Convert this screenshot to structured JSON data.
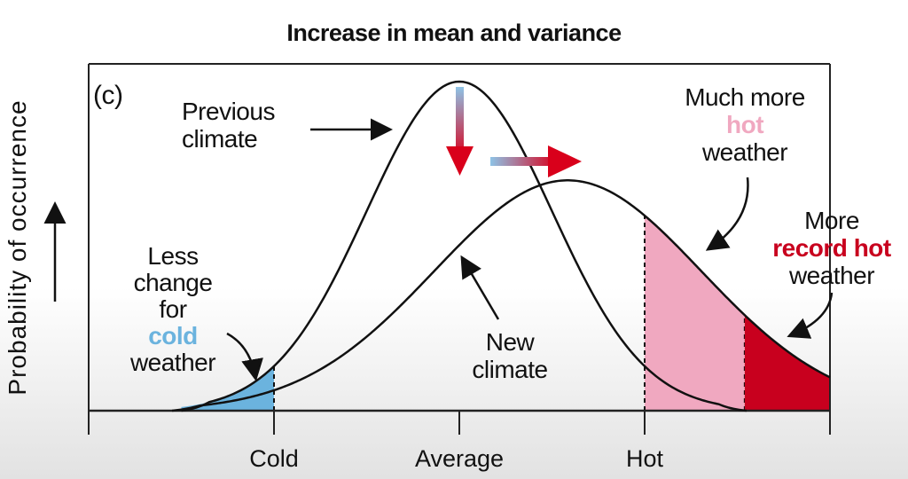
{
  "chart_data": {
    "type": "line",
    "title": "Increase in mean and variance",
    "panel_label": "(c)",
    "ylabel": "Probability of occurrence",
    "xlabel": "",
    "xlim": [
      -4,
      4
    ],
    "x_ticks": [
      {
        "value": -4,
        "label": ""
      },
      {
        "value": -2,
        "label": "Cold"
      },
      {
        "value": 0,
        "label": "Average"
      },
      {
        "value": 2,
        "label": "Hot"
      },
      {
        "value": 4,
        "label": ""
      }
    ],
    "series": [
      {
        "name": "Previous climate",
        "distribution": "normal",
        "mean": 0,
        "sd": 1.0,
        "relative_peak": 1.0
      },
      {
        "name": "New climate",
        "distribution": "normal",
        "mean": 1.17,
        "sd": 1.44,
        "relative_peak": 0.7
      }
    ],
    "shaded_regions": [
      {
        "name": "cold",
        "from": -3.0,
        "to": -2,
        "color": "#6bb3de"
      },
      {
        "name": "hot",
        "from": 2,
        "to": 3.08,
        "color": "#f0a8c0"
      },
      {
        "name": "record hot",
        "from": 3.08,
        "to": 4,
        "color": "#c8001e"
      }
    ],
    "annotations": {
      "previous": [
        "Previous",
        "climate"
      ],
      "new": [
        "New",
        "climate"
      ],
      "cold": [
        "Less",
        "change",
        "for",
        "cold",
        "weather"
      ],
      "hot": [
        "Much more",
        "hot",
        "weather"
      ],
      "record": [
        "More",
        "record hot",
        "weather"
      ]
    },
    "colors": {
      "cold": "#6bb3de",
      "hot": "#f0a8c0",
      "record": "#c8001e",
      "arrow_red": "#d9001b"
    }
  }
}
